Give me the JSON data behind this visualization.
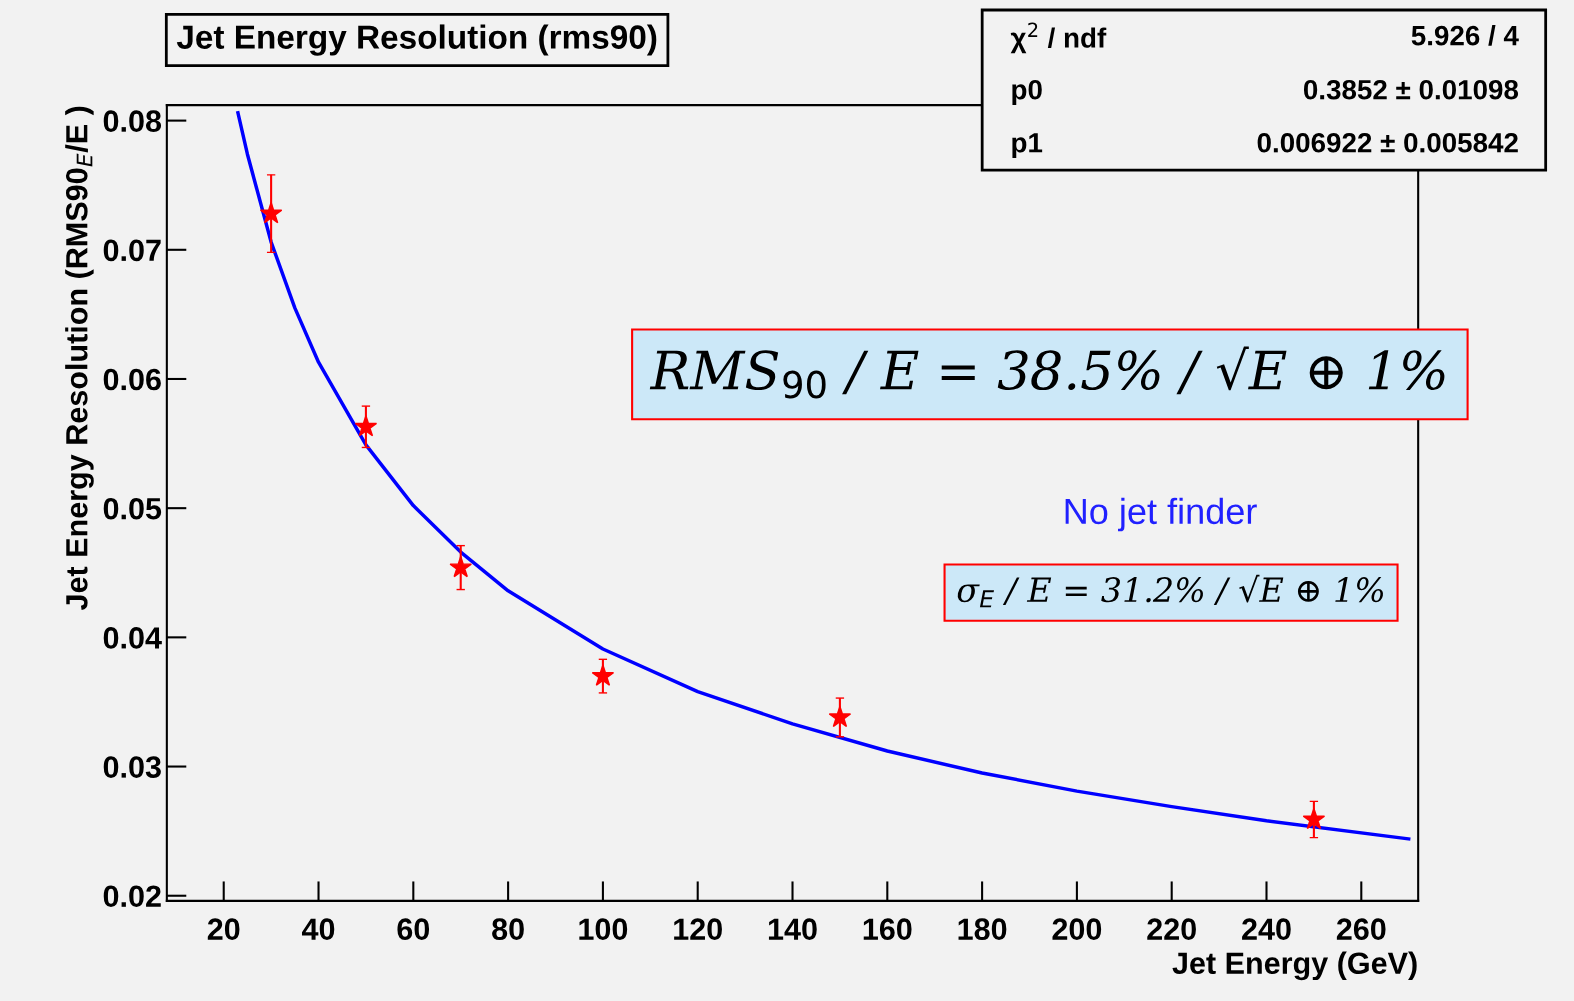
{
  "chart_data": {
    "type": "scatter",
    "title": "Jet Energy Resolution (rms90)",
    "xlabel": "Jet Energy (GeV)",
    "ylabel": "Jet Energy Resolution (RMS90$_{E}$/E )",
    "xlim": [
      8,
      272
    ],
    "ylim": [
      0.0196,
      0.0812
    ],
    "xticks": [
      20,
      40,
      60,
      80,
      100,
      120,
      140,
      160,
      180,
      200,
      220,
      240,
      260
    ],
    "yticks": [
      0.02,
      0.03,
      0.04,
      0.05,
      0.06,
      0.07,
      0.08
    ],
    "grid": false,
    "series": [
      {
        "marker": "star",
        "color": "#ff0000",
        "x": [
          30,
          50,
          70,
          100,
          150,
          250
        ],
        "values": [
          0.0728,
          0.0563,
          0.0454,
          0.037,
          0.0338,
          0.0259
        ],
        "errors": [
          0.003,
          0.0016,
          0.0017,
          0.0013,
          0.0015,
          0.0014
        ]
      },
      {
        "type": "line",
        "marker": "none",
        "color": "#0000ff",
        "x": [
          23,
          25,
          30,
          35,
          40,
          50,
          60,
          70,
          80,
          100,
          120,
          140,
          160,
          180,
          200,
          220,
          240,
          270
        ],
        "values": [
          0.0806,
          0.0774,
          0.0706,
          0.0655,
          0.0613,
          0.0549,
          0.0502,
          0.0466,
          0.0436,
          0.0391,
          0.0358,
          0.0333,
          0.0312,
          0.0295,
          0.0281,
          0.0269,
          0.0258,
          0.0244
        ]
      }
    ],
    "annotations": [
      "χ$^{2}$ / ndf",
      "5.926 / 4",
      "p0",
      "0.3852 ± 0.01098",
      "p1",
      "0.006922 ± 0.005842",
      "RMS$_{90}$ / E = 38.5% / √E ⊕ 1%",
      "No jet finder",
      "σ$_{E}$ / E = 31.2% / √E ⊕ 1%"
    ]
  }
}
